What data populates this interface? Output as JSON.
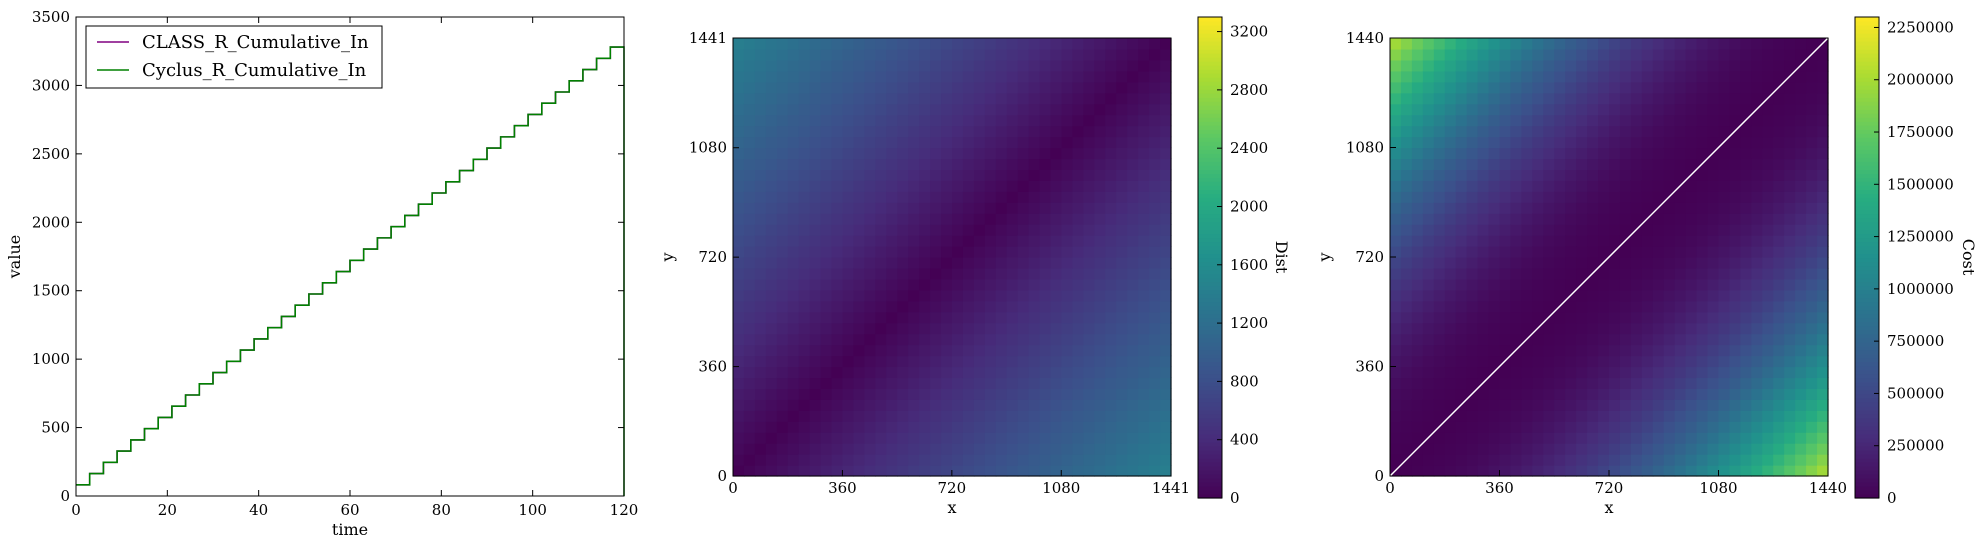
{
  "chart_data": [
    {
      "type": "line",
      "xlabel": "time",
      "ylabel": "value",
      "xlim": [
        0,
        120
      ],
      "ylim": [
        0,
        3500
      ],
      "xticks": [
        0,
        20,
        40,
        60,
        80,
        100,
        120
      ],
      "yticks": [
        0,
        500,
        1000,
        1500,
        2000,
        2500,
        3000,
        3500
      ],
      "legend_position": "top-left",
      "series": [
        {
          "name": "CLASS_R_Cumulative_In",
          "color": "#800080",
          "style": "steps",
          "x": [
            0,
            3,
            6,
            9,
            12,
            15,
            18,
            21,
            24,
            27,
            30,
            33,
            36,
            39,
            42,
            45,
            48,
            51,
            54,
            57,
            60,
            63,
            66,
            69,
            72,
            75,
            78,
            81,
            84,
            87,
            90,
            93,
            96,
            99,
            102,
            105,
            108,
            111,
            114,
            117,
            120
          ],
          "values": [
            82,
            164,
            246,
            328,
            410,
            492,
            574,
            656,
            738,
            820,
            902,
            984,
            1066,
            1148,
            1230,
            1312,
            1394,
            1476,
            1558,
            1640,
            1722,
            1804,
            1886,
            1968,
            2050,
            2132,
            2214,
            2296,
            2378,
            2460,
            2542,
            2624,
            2706,
            2788,
            2870,
            2952,
            3034,
            3116,
            3198,
            3280,
            3280
          ]
        },
        {
          "name": "Cyclus_R_Cumulative_In",
          "color": "#008000",
          "style": "steps",
          "x": [
            0,
            3,
            6,
            9,
            12,
            15,
            18,
            21,
            24,
            27,
            30,
            33,
            36,
            39,
            42,
            45,
            48,
            51,
            54,
            57,
            60,
            63,
            66,
            69,
            72,
            75,
            78,
            81,
            84,
            87,
            90,
            93,
            96,
            99,
            102,
            105,
            108,
            111,
            114,
            117,
            120
          ],
          "values": [
            82,
            164,
            246,
            328,
            410,
            492,
            574,
            656,
            738,
            820,
            902,
            984,
            1066,
            1148,
            1230,
            1312,
            1394,
            1476,
            1558,
            1640,
            1722,
            1804,
            1886,
            1968,
            2050,
            2132,
            2214,
            2296,
            2378,
            2460,
            2542,
            2624,
            2706,
            2788,
            2870,
            2952,
            3034,
            3116,
            3198,
            3280,
            0
          ]
        }
      ]
    },
    {
      "type": "heatmap",
      "xlabel": "x",
      "ylabel": "y",
      "xlim": [
        0,
        1441
      ],
      "ylim": [
        0,
        1441
      ],
      "xticks": [
        0,
        360,
        720,
        1080,
        1441
      ],
      "yticks": [
        0,
        360,
        720,
        1080,
        1441
      ],
      "grid_cells": 40,
      "function": "abs(x - y)",
      "colormap": "viridis",
      "colorbar": {
        "label": "Dist",
        "range": [
          0,
          3300
        ],
        "ticks": [
          0,
          400,
          800,
          1200,
          1600,
          2000,
          2400,
          2800,
          3200
        ]
      }
    },
    {
      "type": "heatmap",
      "xlabel": "x",
      "ylabel": "y",
      "xlim": [
        0,
        1440
      ],
      "ylim": [
        0,
        1440
      ],
      "xticks": [
        0,
        360,
        720,
        1080,
        1440
      ],
      "yticks": [
        0,
        360,
        720,
        1080,
        1440
      ],
      "grid_cells": 40,
      "function": "(x - y)^2",
      "colormap": "viridis",
      "colorbar": {
        "label": "Cost",
        "range": [
          0,
          2300000
        ],
        "ticks": [
          0,
          250000,
          500000,
          750000,
          1000000,
          1250000,
          1500000,
          1750000,
          2000000,
          2250000
        ]
      },
      "overlay_line": {
        "from": [
          0,
          0
        ],
        "to": [
          1440,
          1440
        ],
        "color": "#ffffff"
      }
    }
  ]
}
